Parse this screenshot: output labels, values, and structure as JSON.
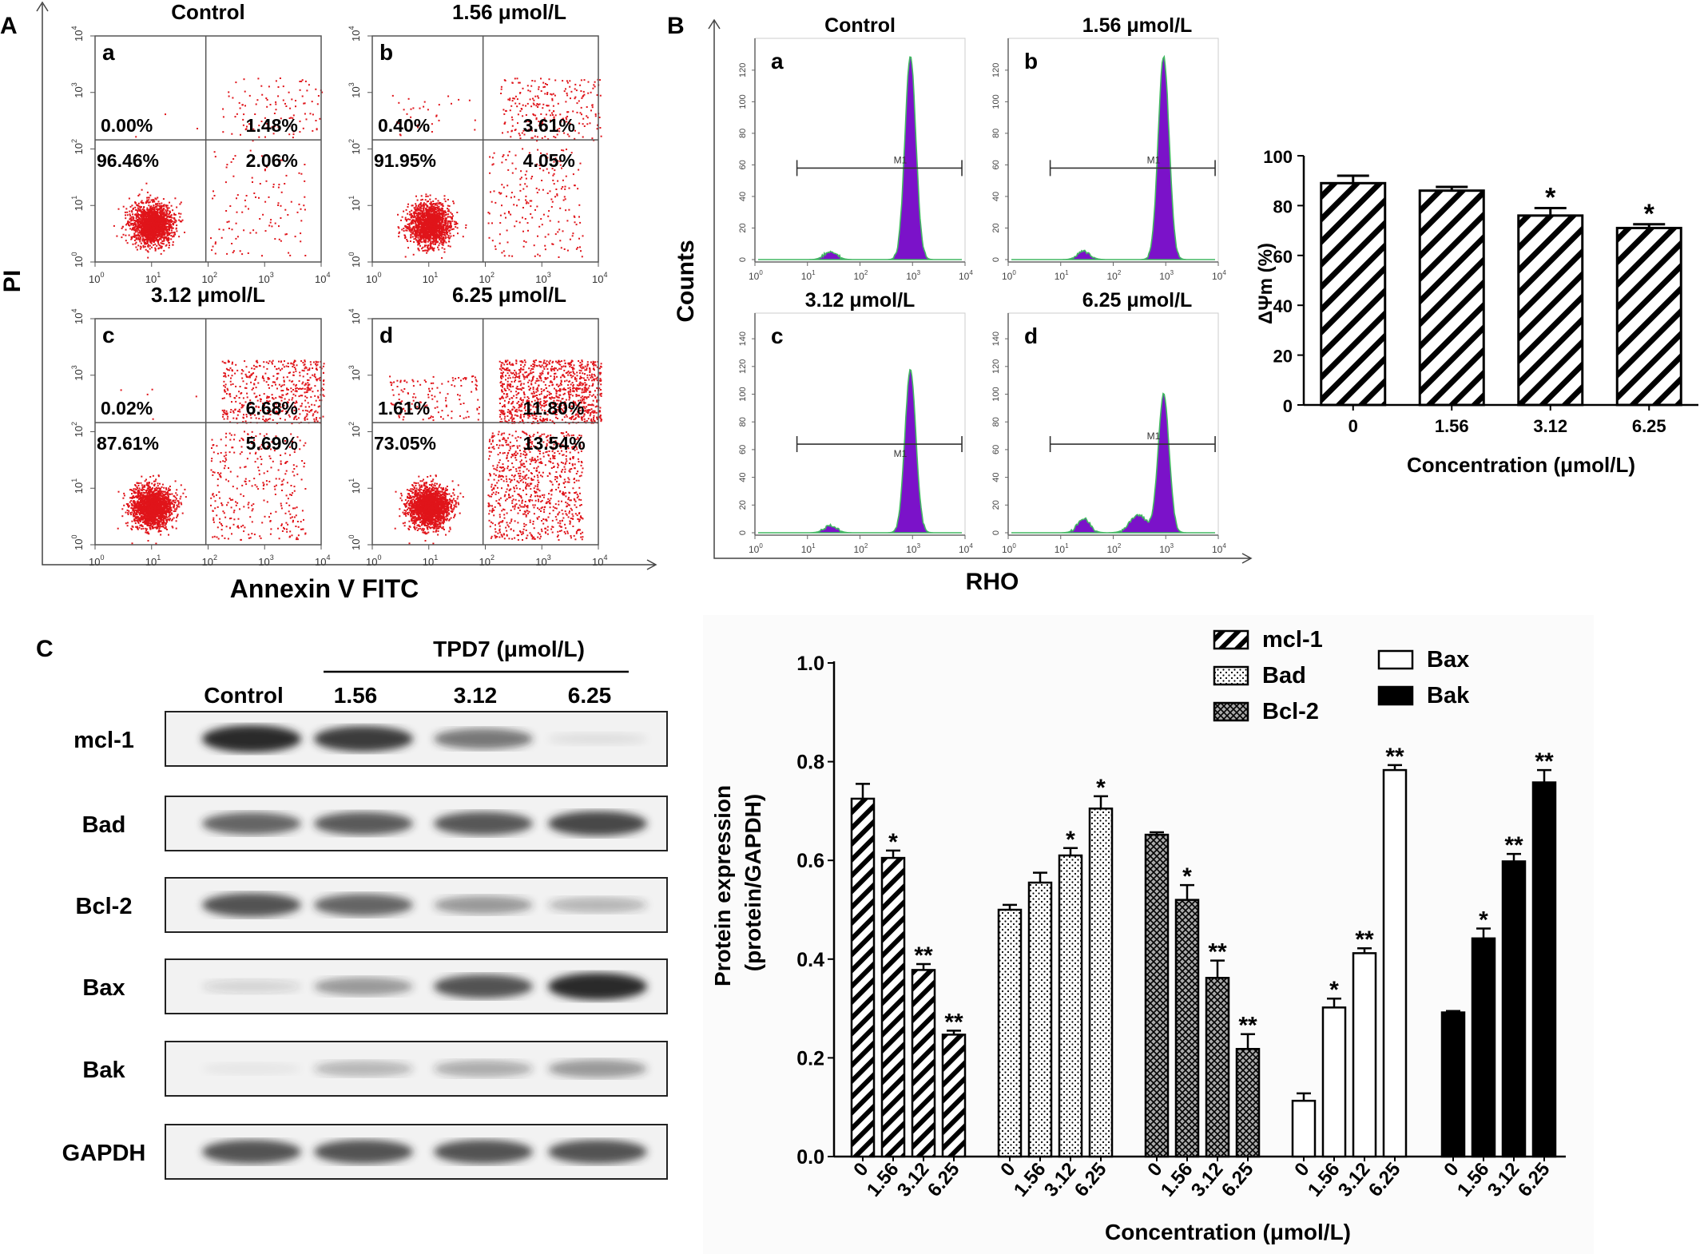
{
  "panel_labels": {
    "A": "A",
    "B": "B",
    "C": "C"
  },
  "colors": {
    "dots": "#e0141a",
    "histogram": "#7b12c9",
    "histogram_edge": "#42b862",
    "black": "#000000",
    "band": "#2a2a2a"
  },
  "panel_A": {
    "ylabel": "PI",
    "xlabel": "Annexin V FITC",
    "tick_labels": [
      "10",
      "0",
      "1",
      "2",
      "3",
      "4"
    ],
    "plots": [
      {
        "letter": "a",
        "title": "Control",
        "ul": "0.00%",
        "ur": "1.48%",
        "ll": "96.46%",
        "lr": "2.06%"
      },
      {
        "letter": "b",
        "title": "1.56 μmol/L",
        "ul": "0.40%",
        "ur": "3.61%",
        "ll": "91.95%",
        "lr": "4.05%"
      },
      {
        "letter": "c",
        "title": "3.12 μmol/L",
        "ul": "0.02%",
        "ur": "6.68%",
        "ll": "87.61%",
        "lr": "5.69%"
      },
      {
        "letter": "d",
        "title": "6.25  μmol/L",
        "ul": "1.61%",
        "ur": "11.80%",
        "ll": "73.05%",
        "lr": "13.54%"
      }
    ]
  },
  "panel_B": {
    "ylabel": "Counts",
    "xlabel": "RHO",
    "gate_label": "M1",
    "plots": [
      {
        "letter": "a",
        "title": "Control",
        "yticks": [
          "0",
          "20",
          "40",
          "60",
          "80",
          "100",
          "120"
        ]
      },
      {
        "letter": "b",
        "title": "1.56 μmol/L",
        "yticks": [
          "0",
          "20",
          "40",
          "60",
          "80",
          "100",
          "120"
        ]
      },
      {
        "letter": "c",
        "title": "3.12 μmol/L",
        "yticks": [
          "0",
          "20",
          "40",
          "60",
          "80",
          "100",
          "120",
          "140"
        ]
      },
      {
        "letter": "d",
        "title": "6.25 μmol/L",
        "yticks": [
          "0",
          "20",
          "40",
          "60",
          "80",
          "100",
          "120",
          "140"
        ]
      }
    ]
  },
  "chart_data": [
    {
      "type": "bar",
      "categories": [
        "0",
        "1.56",
        "3.12",
        "6.25"
      ],
      "values": [
        89,
        86,
        76,
        71
      ],
      "errors": [
        3,
        1.5,
        3,
        1.5
      ],
      "significance": [
        "",
        "",
        "*",
        "*"
      ],
      "ylabel": "ΔΨm (%)",
      "xlabel": "Concentration (μmol/L)",
      "ylim": [
        0,
        100
      ],
      "yticks": [
        0,
        20,
        40,
        60,
        80,
        100
      ]
    },
    {
      "type": "bar",
      "categories": [
        "0",
        "1.56",
        "3.12",
        "6.25"
      ],
      "ylabel": "Protein expression (protein/GAPDH)",
      "xlabel": "Concentration (μmol/L)",
      "ylim": [
        0,
        1.0
      ],
      "yticks": [
        "0.0",
        "0.2",
        "0.4",
        "0.6",
        "0.8",
        "1.0"
      ],
      "series": [
        {
          "name": "mcl-1",
          "pattern": "diag",
          "values": [
            0.725,
            0.605,
            0.378,
            0.247
          ],
          "errors": [
            0.03,
            0.015,
            0.012,
            0.008
          ],
          "significance": [
            "",
            "*",
            "**",
            "**"
          ]
        },
        {
          "name": "Bad",
          "pattern": "dots",
          "values": [
            0.5,
            0.555,
            0.61,
            0.705
          ],
          "errors": [
            0.01,
            0.02,
            0.015,
            0.025
          ],
          "significance": [
            "",
            "",
            "*",
            "*"
          ]
        },
        {
          "name": "Bcl-2",
          "pattern": "cross",
          "values": [
            0.652,
            0.52,
            0.362,
            0.218
          ],
          "errors": [
            0.005,
            0.03,
            0.035,
            0.03
          ],
          "significance": [
            "",
            "*",
            "**",
            "**"
          ]
        },
        {
          "name": "Bax",
          "pattern": "white",
          "values": [
            0.113,
            0.302,
            0.412,
            0.783
          ],
          "errors": [
            0.015,
            0.018,
            0.01,
            0.01
          ],
          "significance": [
            "",
            "*",
            "**",
            "**"
          ]
        },
        {
          "name": "Bak",
          "pattern": "black",
          "values": [
            0.292,
            0.442,
            0.598,
            0.758
          ],
          "errors": [
            0.003,
            0.02,
            0.015,
            0.025
          ],
          "significance": [
            "",
            "*",
            "**",
            "**"
          ]
        }
      ]
    }
  ],
  "western": {
    "group_label": "TPD7 (μmol/L)",
    "lane_labels": [
      "Control",
      "1.56",
      "3.12",
      "6.25"
    ],
    "rows": [
      {
        "label": "mcl-1",
        "intensity": [
          1.0,
          0.9,
          0.6,
          0.08
        ]
      },
      {
        "label": "Bad",
        "intensity": [
          0.7,
          0.75,
          0.78,
          0.85
        ]
      },
      {
        "label": "Bcl-2",
        "intensity": [
          0.8,
          0.7,
          0.45,
          0.3
        ]
      },
      {
        "label": "Bax",
        "intensity": [
          0.15,
          0.45,
          0.8,
          1.0
        ]
      },
      {
        "label": "Bak",
        "intensity": [
          0.05,
          0.3,
          0.35,
          0.45
        ]
      },
      {
        "label": "GAPDH",
        "intensity": [
          0.8,
          0.8,
          0.8,
          0.8
        ]
      }
    ]
  }
}
